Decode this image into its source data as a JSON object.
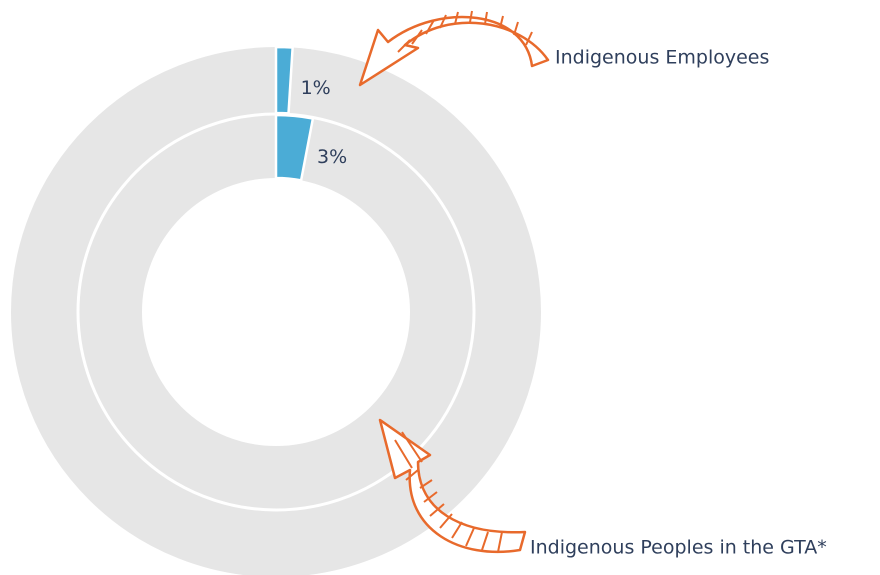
{
  "chart_data": {
    "type": "donut",
    "series": [
      {
        "name": "Indigenous Employees",
        "color": "#4bacd6",
        "values": [
          1
        ],
        "value_labels": [
          "1%"
        ]
      },
      {
        "name": "Indigenous Peoples in the GTA*",
        "color": "#4bacd6",
        "values": [
          3
        ],
        "value_labels": [
          "3%"
        ]
      }
    ],
    "track_color": "#e6e6e6"
  }
}
